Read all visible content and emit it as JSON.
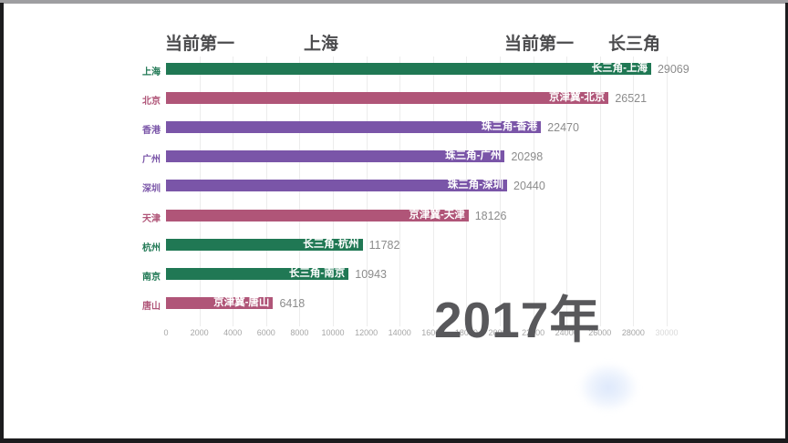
{
  "header": {
    "left_label": "当前第一",
    "left_value": "上海",
    "right_label": "当前第一",
    "right_value": "长三角"
  },
  "year_label": "2017年",
  "colors": {
    "changsanjiao_green": "#207854",
    "jingjinji_rose": "#b05578",
    "zhusanjiao_purple": "#7a55a8",
    "value_text": "#8c8c8c",
    "tick_text": "#a6a6a6",
    "header_text": "#4c4c4e",
    "year_text": "#58585b",
    "gridline": "#ececec"
  },
  "chart_data": {
    "type": "bar",
    "orientation": "horizontal",
    "title": "",
    "xlabel": "",
    "ylabel": "",
    "xlim": [
      0,
      30000
    ],
    "grid": true,
    "x_axis": {
      "min": 0,
      "max": 30000,
      "tick_step": 2000,
      "ticks": [
        0,
        2000,
        4000,
        6000,
        8000,
        10000,
        12000,
        14000,
        16000,
        18000,
        20000,
        22000,
        24000,
        26000,
        28000,
        30000
      ]
    },
    "groups": [
      {
        "name": "长三角",
        "color": "#207854"
      },
      {
        "name": "京津冀",
        "color": "#b05578"
      },
      {
        "name": "珠三角",
        "color": "#7a55a8"
      }
    ],
    "bars": [
      {
        "city": "上海",
        "label": "长三角-上海",
        "group": "长三角",
        "value": 29069,
        "color": "#207854"
      },
      {
        "city": "北京",
        "label": "京津冀-北京",
        "group": "京津冀",
        "value": 26521,
        "color": "#b05578"
      },
      {
        "city": "香港",
        "label": "珠三角-香港",
        "group": "珠三角",
        "value": 22470,
        "color": "#7a55a8"
      },
      {
        "city": "广州",
        "label": "珠三角-广州",
        "group": "珠三角",
        "value": 20298,
        "color": "#7a55a8"
      },
      {
        "city": "深圳",
        "label": "珠三角-深圳",
        "group": "珠三角",
        "value": 20440,
        "color": "#7a55a8"
      },
      {
        "city": "天津",
        "label": "京津冀-天津",
        "group": "京津冀",
        "value": 18126,
        "color": "#b05578"
      },
      {
        "city": "杭州",
        "label": "长三角-杭州",
        "group": "长三角",
        "value": 11782,
        "color": "#207854"
      },
      {
        "city": "南京",
        "label": "长三角-南京",
        "group": "长三角",
        "value": 10943,
        "color": "#207854"
      },
      {
        "city": "唐山",
        "label": "京津冀-唐山",
        "group": "京津冀",
        "value": 6418,
        "color": "#b05578"
      }
    ]
  }
}
